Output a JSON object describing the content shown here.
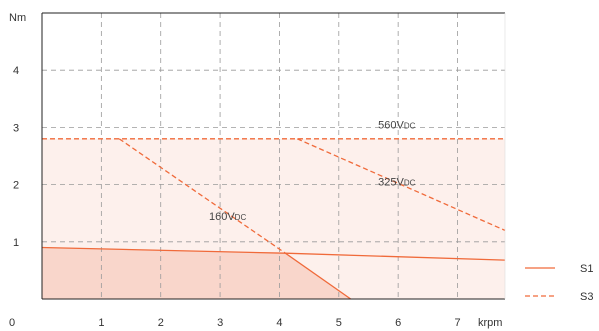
{
  "chart_data": {
    "type": "line",
    "xlabel": "krpm",
    "ylabel": "Nm",
    "xlim": [
      0,
      7.8
    ],
    "ylim": [
      0,
      5
    ],
    "x_ticks": [
      0,
      1,
      2,
      3,
      4,
      5,
      6,
      7
    ],
    "y_ticks": [
      1,
      2,
      3,
      4
    ],
    "x_tick_labels": [
      "0",
      "1",
      "2",
      "3",
      "4",
      "5",
      "6",
      "7"
    ],
    "y_tick_labels": [
      "1",
      "2",
      "3",
      "4"
    ],
    "grid": true,
    "legend_position": "bottom-right",
    "colors": {
      "line": "#f06a3a",
      "fill_s3": "#fdf0ec",
      "fill_s1": "#f9d6cb",
      "grid": "#9a9a9a",
      "axis": "#222222"
    },
    "series": [
      {
        "name": "S1",
        "style": "solid",
        "points": [
          [
            0,
            0.9
          ],
          [
            4.1,
            0.8
          ],
          [
            7.8,
            0.68
          ]
        ]
      },
      {
        "name": "S3",
        "style": "dashed",
        "points": [
          [
            0,
            2.8
          ],
          [
            7.8,
            2.8
          ]
        ]
      }
    ],
    "extra_lines": [
      {
        "style": "solid",
        "points": [
          [
            4.1,
            0.8
          ],
          [
            5.2,
            0.0
          ]
        ]
      },
      {
        "style": "dashed",
        "points": [
          [
            1.3,
            2.8
          ],
          [
            4.1,
            0.8
          ]
        ]
      },
      {
        "style": "dashed",
        "points": [
          [
            4.3,
            2.8
          ],
          [
            7.8,
            1.2
          ]
        ]
      }
    ],
    "fills": [
      {
        "level": "S3",
        "points": [
          [
            0,
            2.8
          ],
          [
            7.8,
            2.8
          ],
          [
            7.8,
            0
          ],
          [
            0,
            0
          ]
        ]
      },
      {
        "level": "S1",
        "points": [
          [
            0,
            0.9
          ],
          [
            4.1,
            0.8
          ],
          [
            5.2,
            0.0
          ],
          [
            0,
            0
          ]
        ]
      }
    ],
    "annotations": [
      {
        "main": "560V",
        "sub": "DC",
        "x": 6.0,
        "y": 2.98
      },
      {
        "main": "325V",
        "sub": "DC",
        "x": 6.0,
        "y": 1.98
      },
      {
        "main": "160V",
        "sub": "DC",
        "x": 3.15,
        "y": 1.38
      }
    ]
  }
}
